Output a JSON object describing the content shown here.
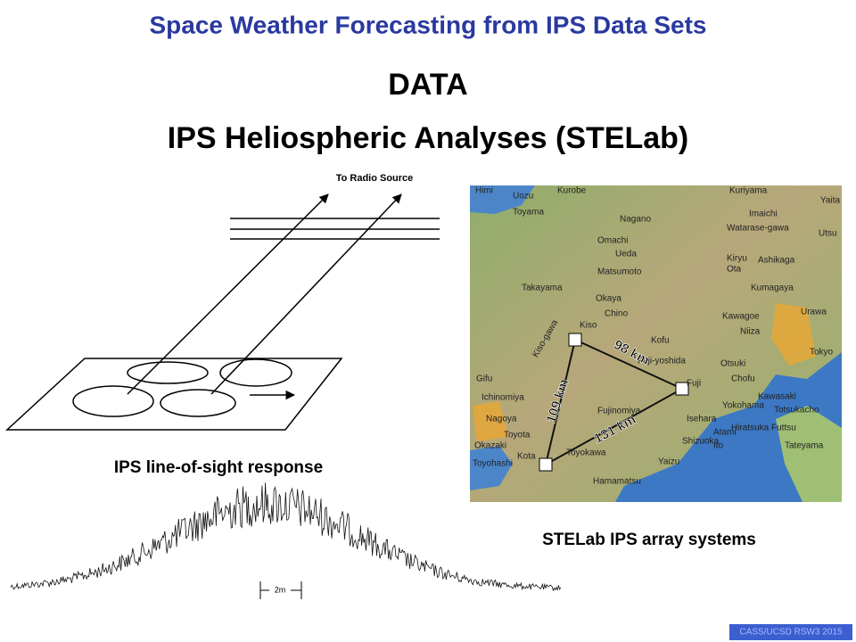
{
  "header": {
    "title": "Space Weather Forecasting from IPS Data Sets"
  },
  "headings": [
    "DATA",
    "IPS Heliospheric Analyses (STELab)"
  ],
  "diagram": {
    "source_label": "To Radio Source",
    "caption": "IPS line-of-sight response",
    "scale_label": "2m"
  },
  "map": {
    "caption": "STELab IPS array systems",
    "labels": [
      "Himi",
      "Uozu",
      "Kurobe",
      "Kuriyama",
      "Yaita",
      "Toyama",
      "Nagano",
      "Imaichi",
      "Utsu",
      "Omachi",
      "Ueda",
      "Watarase-gawa",
      "Kiryu",
      "Ota",
      "Ashikaga",
      "Matsumoto",
      "Takayama",
      "Kumagaya",
      "Okaya",
      "Chino",
      "Kawagoe",
      "Kiso",
      "Kofu",
      "Urawa",
      "Niiza",
      "Fuji-yoshida",
      "Otsuki",
      "Chofu",
      "Fuji",
      "Yokohama",
      "Tokyo",
      "Kawasaki",
      "Gifu",
      "Ichinomiya",
      "Nagoya",
      "Hiratsuka",
      "Isehara",
      "Totsukacho",
      "Fujinomiya",
      "Futtsu",
      "Toyota",
      "Atami",
      "Ito",
      "Tateyama",
      "Okazaki",
      "Toyokawa",
      "Shizuoka",
      "Toyohashi",
      "Kota",
      "Yaizu",
      "Hamamatsu",
      "Kiso-gawa"
    ],
    "distances": [
      "98 km",
      "109 km",
      "131 km"
    ]
  },
  "footer": "CASS/UCSD RSW3 2015"
}
